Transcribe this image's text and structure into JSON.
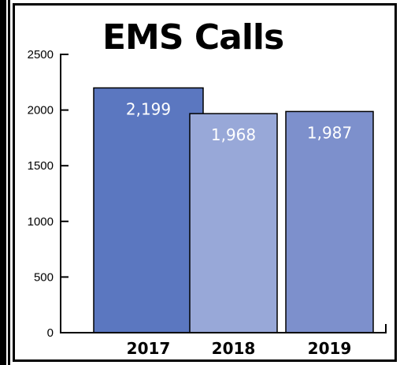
{
  "chart_data": {
    "type": "bar",
    "title": "EMS Calls",
    "xlabel": "",
    "ylabel": "",
    "categories": [
      "2017",
      "2018",
      "2019"
    ],
    "values": [
      2199,
      1968,
      1987
    ],
    "value_labels": [
      "2,199",
      "1,968",
      "1,987"
    ],
    "ylim": [
      0,
      2500
    ],
    "yticks": [
      0,
      500,
      1000,
      1500,
      2000,
      2500
    ],
    "grid": false,
    "legend": "none",
    "colors": [
      "#5b77c0",
      "#98a8d8",
      "#7d90cc"
    ],
    "axis_color": "#000000",
    "value_label_color": "#ffffff"
  }
}
